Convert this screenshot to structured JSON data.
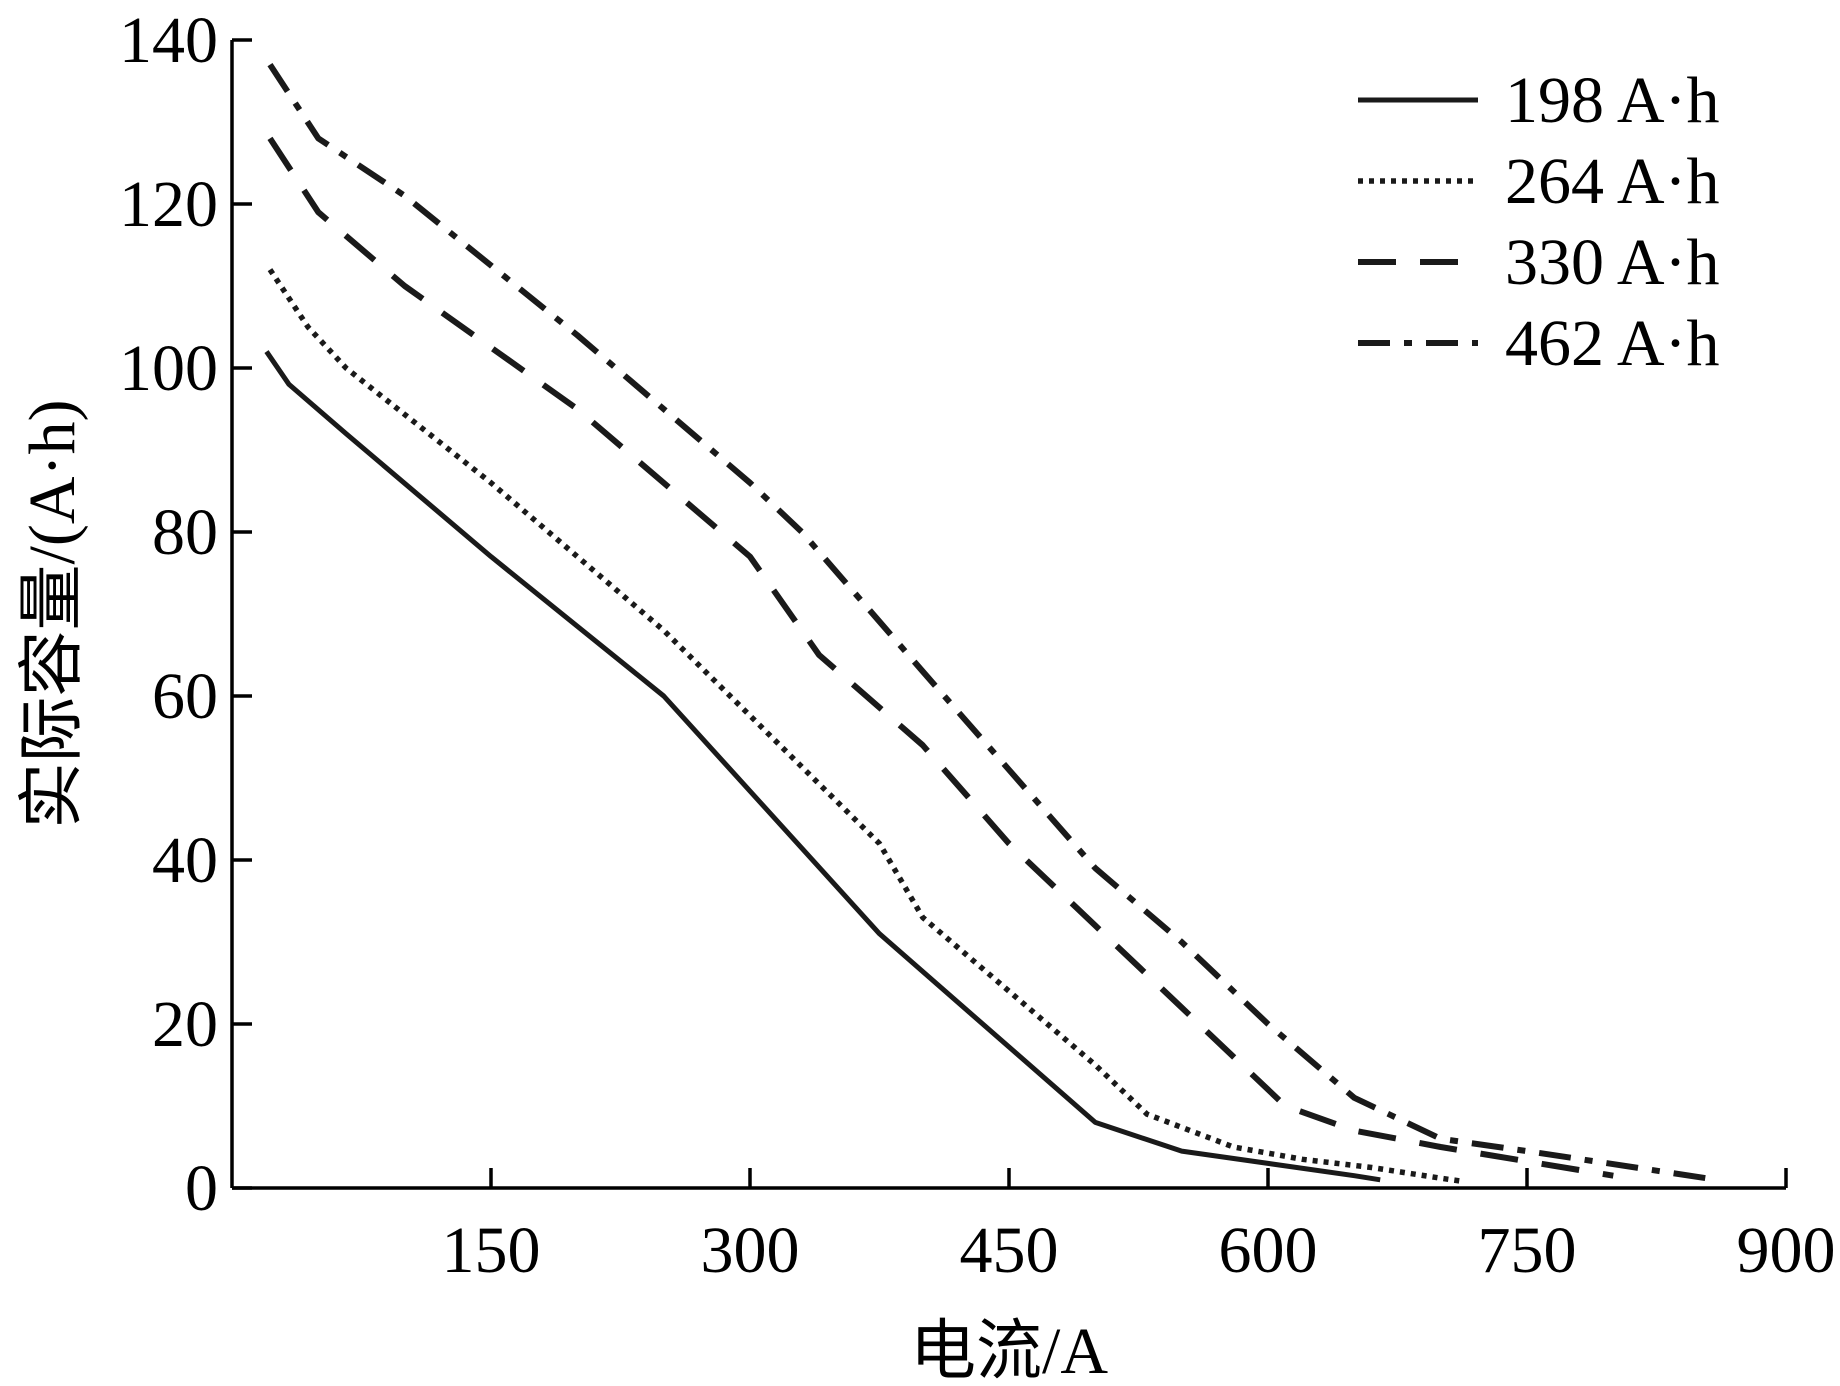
{
  "chart_data": {
    "type": "line",
    "xlabel": "电流/A",
    "ylabel": "实际容量/(A·h)",
    "xlim": [
      0,
      900
    ],
    "ylim": [
      0,
      140
    ],
    "xticks": [
      "150",
      "300",
      "450",
      "600",
      "750",
      "900"
    ],
    "yticks": [
      "0",
      "20",
      "40",
      "60",
      "80",
      "100",
      "120",
      "140"
    ],
    "grid": false,
    "legend_position": "top-right",
    "line_color": "#1a1a1a",
    "series": [
      {
        "name": "198 A·h",
        "style": "solid",
        "x": [
          20,
          33,
          66,
          150,
          250,
          375,
          500,
          550,
          600,
          650,
          665
        ],
        "y": [
          102,
          98,
          92,
          77,
          60,
          31,
          8,
          4.5,
          3,
          1.5,
          1
        ]
      },
      {
        "name": "264 A·h",
        "style": "dotted",
        "x": [
          22,
          44,
          66,
          150,
          250,
          375,
          400,
          450,
          500,
          530,
          580,
          620,
          660,
          700,
          713
        ],
        "y": [
          112,
          105,
          100,
          86,
          68,
          42,
          33,
          24,
          15,
          9,
          5,
          3.5,
          2.5,
          1.2,
          0.8
        ]
      },
      {
        "name": "330 A·h",
        "style": "dashed",
        "x": [
          22,
          50,
          100,
          200,
          300,
          340,
          400,
          450,
          500,
          550,
          610,
          650,
          700,
          800
        ],
        "y": [
          128,
          119,
          110,
          95,
          77,
          65,
          54,
          42,
          32,
          22,
          10,
          7,
          5,
          1.5
        ]
      },
      {
        "name": "462 A·h",
        "style": "dashdot",
        "x": [
          22,
          50,
          100,
          200,
          300,
          330,
          400,
          450,
          500,
          550,
          600,
          650,
          700,
          750,
          860
        ],
        "y": [
          137,
          128,
          121,
          104,
          86,
          80,
          63,
          51,
          39,
          30,
          20,
          11,
          6,
          4.5,
          1
        ]
      }
    ]
  }
}
